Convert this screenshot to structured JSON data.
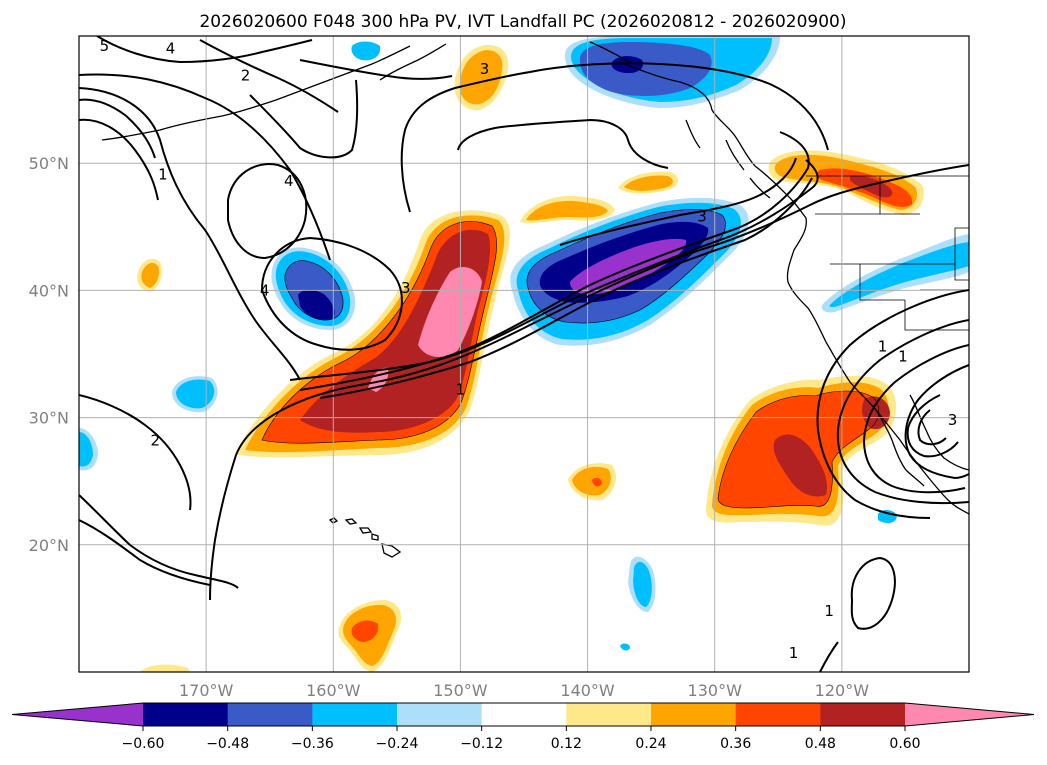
{
  "chart_data": {
    "type": "heatmap",
    "title": "2026020600 F048 300 hPa PV, IVT Landfall PC (2026020812 - 2026020900)",
    "lon_range": [
      -180,
      -110
    ],
    "lat_range": [
      10,
      60
    ],
    "lon_ticks": [
      {
        "value": -170,
        "label": "170°W"
      },
      {
        "value": -160,
        "label": "160°W"
      },
      {
        "value": -150,
        "label": "150°W"
      },
      {
        "value": -140,
        "label": "140°W"
      },
      {
        "value": -130,
        "label": "130°W"
      },
      {
        "value": -120,
        "label": "120°W"
      }
    ],
    "lat_ticks": [
      {
        "value": 20,
        "label": "20°N"
      },
      {
        "value": 30,
        "label": "30°N"
      },
      {
        "value": 40,
        "label": "40°N"
      },
      {
        "value": 50,
        "label": "50°N"
      }
    ],
    "grid": true,
    "colorbar": {
      "orientation": "horizontal",
      "extend": "both",
      "colors": [
        "#9932CC",
        "#00008B",
        "#3A5AC8",
        "#00BFFF",
        "#ADDFFA",
        "#FFFFFF",
        "#FFE88A",
        "#FFA500",
        "#FF4500",
        "#B22222",
        "#FF88B0"
      ],
      "tick_values": [
        -0.6,
        -0.48,
        -0.36,
        -0.24,
        -0.12,
        0.12,
        0.24,
        0.36,
        0.48,
        0.6
      ],
      "tick_labels": [
        "−0.60",
        "−0.48",
        "−0.36",
        "−0.24",
        "−0.12",
        "0.12",
        "0.24",
        "0.36",
        "0.48",
        "0.60"
      ]
    },
    "pv_contour_labels": [
      {
        "text": "5",
        "lon": -178,
        "lat": 59.2
      },
      {
        "text": "4",
        "lon": -172.8,
        "lat": 59.0
      },
      {
        "text": "2",
        "lon": -166.9,
        "lat": 56.9
      },
      {
        "text": "3",
        "lon": -148.1,
        "lat": 57.4
      },
      {
        "text": "1",
        "lon": -173.4,
        "lat": 49.1
      },
      {
        "text": "4",
        "lon": -163.5,
        "lat": 48.6
      },
      {
        "text": "4",
        "lon": -165.4,
        "lat": 40.0
      },
      {
        "text": "3",
        "lon": -154.3,
        "lat": 40.2
      },
      {
        "text": "1",
        "lon": -150.0,
        "lat": 32.2
      },
      {
        "text": "2",
        "lon": -174.0,
        "lat": 28.2
      },
      {
        "text": "3",
        "lon": -131.0,
        "lat": 45.8
      },
      {
        "text": "1",
        "lon": -116.8,
        "lat": 35.6
      },
      {
        "text": "3",
        "lon": -111.3,
        "lat": 29.8
      },
      {
        "text": "1",
        "lon": -115.2,
        "lat": 34.8
      },
      {
        "text": "1",
        "lon": -121.0,
        "lat": 14.8
      },
      {
        "text": "1",
        "lon": -123.8,
        "lat": 11.5
      }
    ]
  }
}
